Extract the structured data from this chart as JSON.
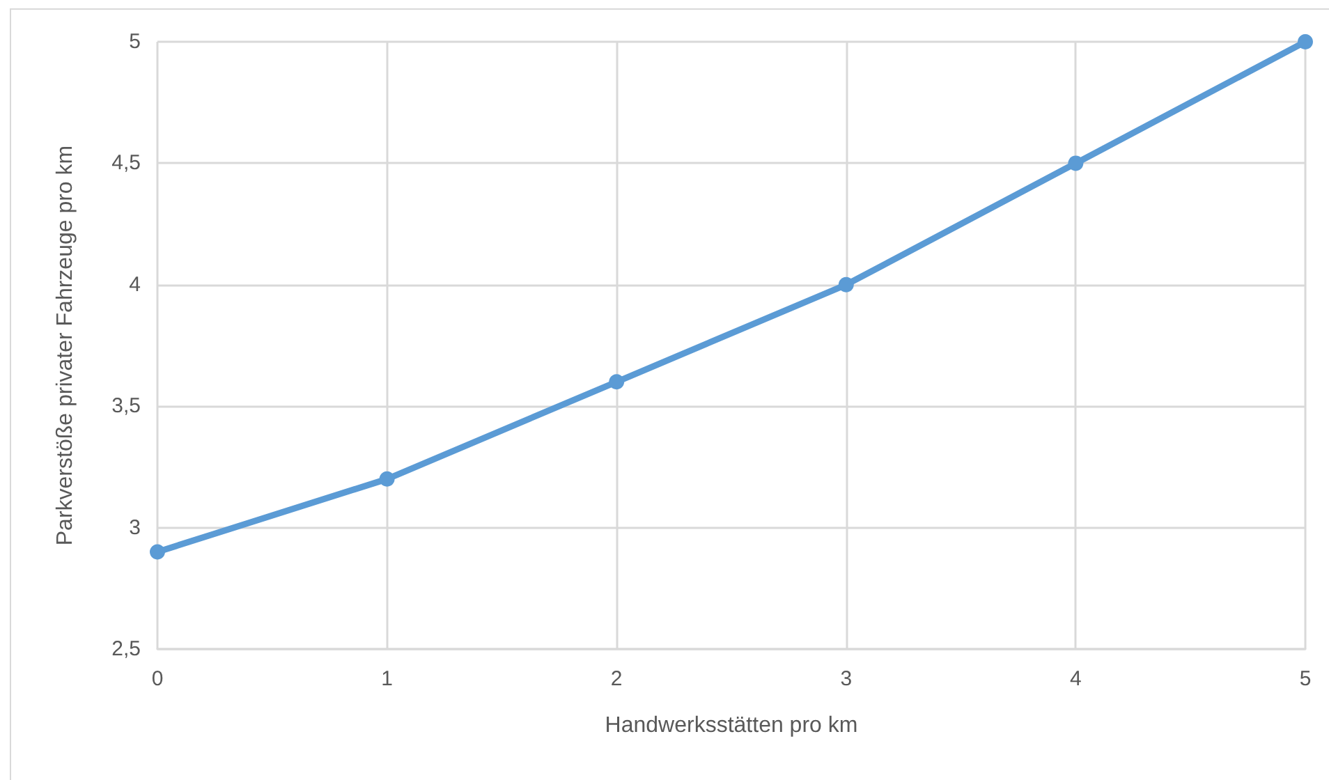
{
  "chart_data": {
    "type": "line",
    "xlabel": "Handwerksstätten pro km",
    "ylabel": "Parkverstöße privater Fahrzeuge pro km",
    "x": [
      0,
      1,
      2,
      3,
      4,
      5
    ],
    "series": [
      {
        "color": "#5b9bd5",
        "values": [
          2.9,
          3.2,
          3.6,
          4.0,
          4.5,
          5.0
        ]
      }
    ],
    "xlim": [
      0,
      5
    ],
    "xticks": [
      0,
      1,
      2,
      3,
      4,
      5
    ],
    "ylim": [
      2.5,
      5
    ],
    "yticks": [
      {
        "value": 2.5,
        "label": "2,5"
      },
      3,
      {
        "value": 3.5,
        "label": "3,5"
      },
      4,
      {
        "value": 4.5,
        "label": "4,5"
      },
      5
    ],
    "grid": true,
    "marker": "circle",
    "line_style": "solid"
  }
}
